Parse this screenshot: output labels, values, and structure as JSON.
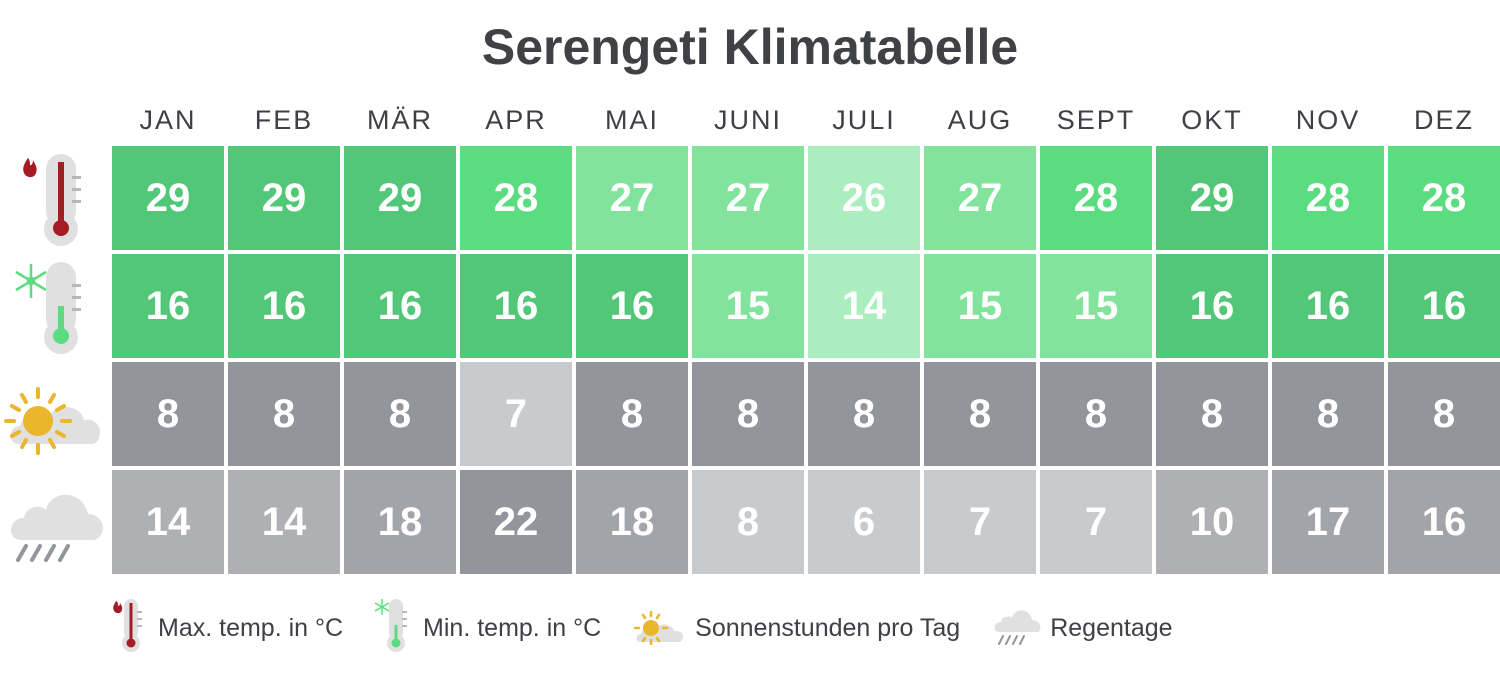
{
  "title": "Serengeti Klimatabelle",
  "months": [
    "JAN",
    "FEB",
    "MÄR",
    "APR",
    "MAI",
    "JUNI",
    "JULI",
    "AUG",
    "SEPT",
    "OKT",
    "NOV",
    "DEZ"
  ],
  "rows": [
    {
      "key": "max_temp",
      "icon": "thermometer-hot-icon",
      "values": [
        "29",
        "29",
        "29",
        "28",
        "27",
        "27",
        "26",
        "27",
        "28",
        "29",
        "28",
        "28"
      ],
      "colors": [
        "#52c777",
        "#52c777",
        "#52c777",
        "#5cdc80",
        "#82e39c",
        "#82e39c",
        "#aaedbe",
        "#82e39c",
        "#5cdc80",
        "#52c777",
        "#5cdc80",
        "#5cdc80"
      ]
    },
    {
      "key": "min_temp",
      "icon": "thermometer-cold-icon",
      "values": [
        "16",
        "16",
        "16",
        "16",
        "16",
        "15",
        "14",
        "15",
        "15",
        "16",
        "16",
        "16"
      ],
      "colors": [
        "#52c777",
        "#52c777",
        "#52c777",
        "#52c777",
        "#52c777",
        "#82e39c",
        "#aaedbe",
        "#82e39c",
        "#82e39c",
        "#52c777",
        "#52c777",
        "#52c777"
      ]
    },
    {
      "key": "sunshine",
      "icon": "sun-cloud-icon",
      "values": [
        "8",
        "8",
        "8",
        "7",
        "8",
        "8",
        "8",
        "8",
        "8",
        "8",
        "8",
        "8"
      ],
      "colors": [
        "#93959c",
        "#93959c",
        "#93959c",
        "#c8cbce",
        "#93959c",
        "#93959c",
        "#93959c",
        "#93959c",
        "#93959c",
        "#93959c",
        "#93959c",
        "#93959c"
      ]
    },
    {
      "key": "rain_days",
      "icon": "rain-cloud-icon",
      "values": [
        "14",
        "14",
        "18",
        "22",
        "18",
        "8",
        "6",
        "7",
        "7",
        "10",
        "17",
        "16"
      ],
      "colors": [
        "#aeb0b4",
        "#aeb0b4",
        "#a2a4a9",
        "#93959c",
        "#a2a4a9",
        "#c8cbce",
        "#c8cbce",
        "#c8cbce",
        "#c8cbce",
        "#aeb0b4",
        "#a2a4a9",
        "#a2a4a9"
      ]
    }
  ],
  "legend": [
    {
      "icon": "thermometer-hot-icon",
      "label": "Max. temp. in °C"
    },
    {
      "icon": "thermometer-cold-icon",
      "label": "Min. temp. in °C"
    },
    {
      "icon": "sun-cloud-icon",
      "label": "Sonnenstunden pro Tag"
    },
    {
      "icon": "rain-cloud-icon",
      "label": "Regentage"
    }
  ],
  "chart_data": {
    "type": "table",
    "title": "Serengeti Klimatabelle",
    "categories": [
      "JAN",
      "FEB",
      "MÄR",
      "APR",
      "MAI",
      "JUNI",
      "JULI",
      "AUG",
      "SEPT",
      "OKT",
      "NOV",
      "DEZ"
    ],
    "series": [
      {
        "name": "Max. temp. in °C",
        "values": [
          29,
          29,
          29,
          28,
          27,
          27,
          26,
          27,
          28,
          29,
          28,
          28
        ]
      },
      {
        "name": "Min. temp. in °C",
        "values": [
          16,
          16,
          16,
          16,
          16,
          15,
          14,
          15,
          15,
          16,
          16,
          16
        ]
      },
      {
        "name": "Sonnenstunden pro Tag",
        "values": [
          8,
          8,
          8,
          7,
          8,
          8,
          8,
          8,
          8,
          8,
          8,
          8
        ]
      },
      {
        "name": "Regentage",
        "values": [
          14,
          14,
          18,
          22,
          18,
          8,
          6,
          7,
          7,
          10,
          17,
          16
        ]
      }
    ],
    "legend_position": "bottom"
  }
}
